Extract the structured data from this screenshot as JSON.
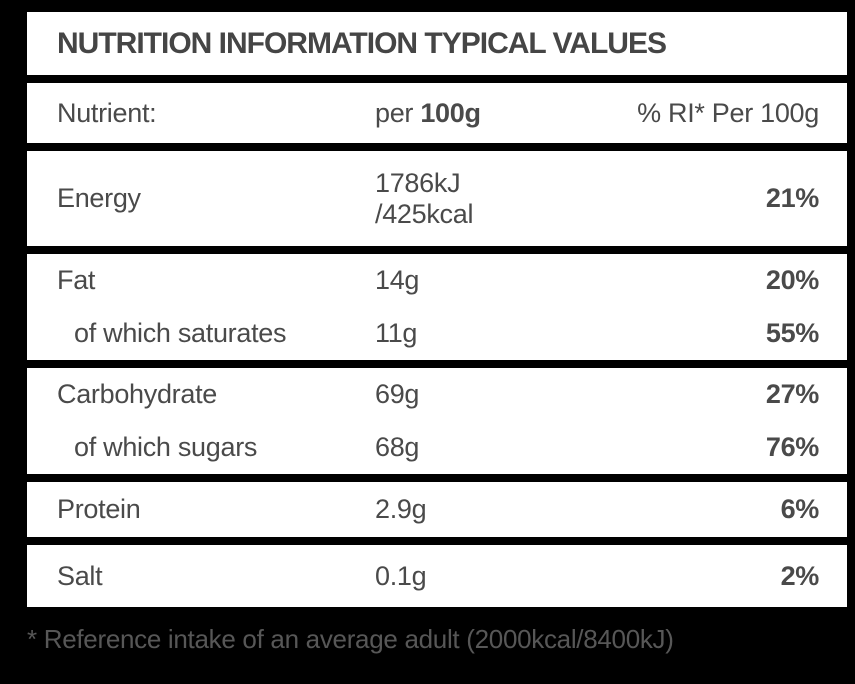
{
  "title": "NUTRITION INFORMATION TYPICAL VALUES",
  "header": {
    "col1": "Nutrient:",
    "col2_prefix": "per ",
    "col2_bold": "100g",
    "col3": "% RI* Per 100g"
  },
  "rows": [
    {
      "label": "Energy",
      "value": "1786kJ",
      "value2": "/425kcal",
      "ri": "21%"
    },
    {
      "label": "Fat",
      "value": "14g",
      "ri": "20%"
    },
    {
      "label": "of which saturates",
      "value": "11g",
      "ri": "55%"
    },
    {
      "label": "Carbohydrate",
      "value": "69g",
      "ri": "27%"
    },
    {
      "label": "of which sugars",
      "value": "68g",
      "ri": "76%"
    },
    {
      "label": "Protein",
      "value": "2.9g",
      "ri": "6%"
    },
    {
      "label": "Salt",
      "value": "0.1g",
      "ri": "2%"
    }
  ],
  "footnote": "* Reference intake of an average adult (2000kcal/8400kJ)",
  "colors": {
    "background": "#000000",
    "row_background": "#ffffff",
    "text": "#4a4a4a",
    "footnote_text": "#575757"
  }
}
